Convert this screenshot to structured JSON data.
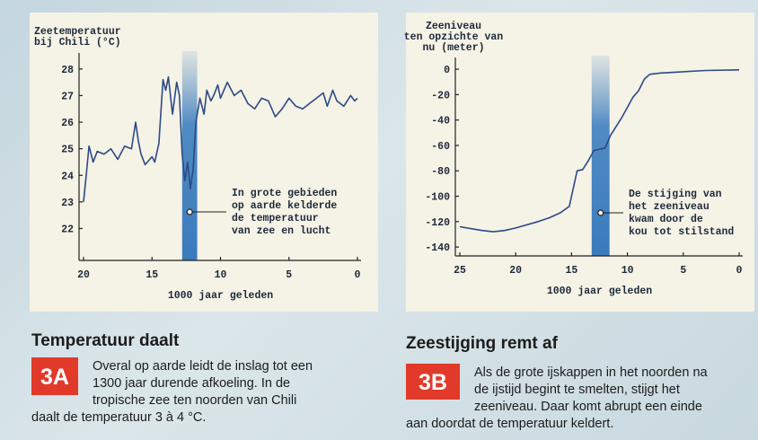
{
  "chart_data": [
    {
      "type": "line",
      "title": [
        "Zeetemperatuur",
        "bij Chili (°C)"
      ],
      "xlabel": "1000 jaar geleden",
      "xlim": [
        20,
        0
      ],
      "ylim": [
        20.8,
        28.4
      ],
      "xticks": [
        20,
        15,
        10,
        5,
        0
      ],
      "yticks": [
        22,
        23,
        24,
        25,
        26,
        27,
        28
      ],
      "color": "#2b4a86",
      "band": [
        12.8,
        11.7
      ],
      "annotation": [
        "In grote gebieden",
        "op aarde kelderde",
        "de temperatuur",
        "van zee en lucht"
      ],
      "x": [
        20,
        19.8,
        19.6,
        19.3,
        19.0,
        18.5,
        18.0,
        17.5,
        17.0,
        16.5,
        16.2,
        16.0,
        15.8,
        15.5,
        15.0,
        14.8,
        14.5,
        14.2,
        14.0,
        13.8,
        13.5,
        13.2,
        13.0,
        12.8,
        12.6,
        12.4,
        12.2,
        12.0,
        11.8,
        11.5,
        11.2,
        11.0,
        10.7,
        10.5,
        10.2,
        10.0,
        9.5,
        9.0,
        8.5,
        8.0,
        7.5,
        7.0,
        6.5,
        6.0,
        5.5,
        5.0,
        4.5,
        4.0,
        3.5,
        3.0,
        2.5,
        2.2,
        1.8,
        1.5,
        1.0,
        0.5,
        0.2,
        0
      ],
      "values": [
        23.0,
        24.0,
        25.1,
        24.5,
        24.9,
        24.8,
        25.0,
        24.6,
        25.1,
        25.0,
        26.0,
        25.3,
        24.8,
        24.4,
        24.7,
        24.5,
        25.2,
        27.6,
        27.2,
        27.7,
        26.3,
        27.5,
        27.0,
        24.8,
        23.8,
        24.5,
        23.5,
        24.2,
        26.0,
        26.9,
        26.3,
        27.2,
        26.8,
        27.0,
        27.4,
        26.9,
        27.5,
        27.0,
        27.2,
        26.7,
        26.5,
        26.9,
        26.8,
        26.2,
        26.5,
        26.9,
        26.6,
        26.5,
        26.7,
        26.9,
        27.1,
        26.6,
        27.2,
        26.8,
        26.6,
        27.0,
        26.8,
        26.9
      ]
    },
    {
      "type": "line",
      "title": [
        "Zeeniveau",
        "ten opzichte van",
        "nu (meter)"
      ],
      "xlabel": "1000 jaar geleden",
      "xlim": [
        25,
        0
      ],
      "ylim": [
        -147,
        5
      ],
      "xticks": [
        25,
        20,
        15,
        10,
        5,
        0
      ],
      "yticks": [
        0,
        -20,
        -40,
        -60,
        -80,
        -100,
        -120,
        -140
      ],
      "color": "#2b4a86",
      "band": [
        13.2,
        11.6
      ],
      "annotation": [
        "De stijging van",
        "het zeeniveau",
        "kwam door de",
        "kou tot stilstand"
      ],
      "x": [
        25,
        23,
        22,
        21,
        20,
        18,
        17,
        16,
        15.2,
        14.5,
        14,
        13.5,
        13,
        12,
        11.5,
        10.5,
        9.5,
        9,
        8.5,
        8,
        7,
        5,
        3,
        0
      ],
      "values": [
        -124,
        -127,
        -128,
        -127,
        -125,
        -120,
        -117,
        -113,
        -108,
        -80,
        -79,
        -72,
        -64,
        -62,
        -52,
        -38,
        -22,
        -17,
        -8,
        -4,
        -3,
        -2,
        -1,
        -0.5
      ]
    }
  ],
  "captions": [
    {
      "heading": "Temperatuur daalt",
      "badge": "3A",
      "lines": [
        "Overal op aarde leidt de inslag tot een",
        "1300 jaar durende afkoeling. In de",
        "tropische zee ten noorden van Chili",
        "daalt de temperatuur 3 à 4 °C."
      ]
    },
    {
      "heading": "Zeestijging remt af",
      "badge": "3B",
      "lines": [
        "Als de grote ijskappen in het noorden na",
        "de ijstijd begint te smelten, stijgt het",
        "zeeniveau. Daar komt abrupt een einde",
        "aan doordat de temperatuur keldert."
      ]
    }
  ]
}
